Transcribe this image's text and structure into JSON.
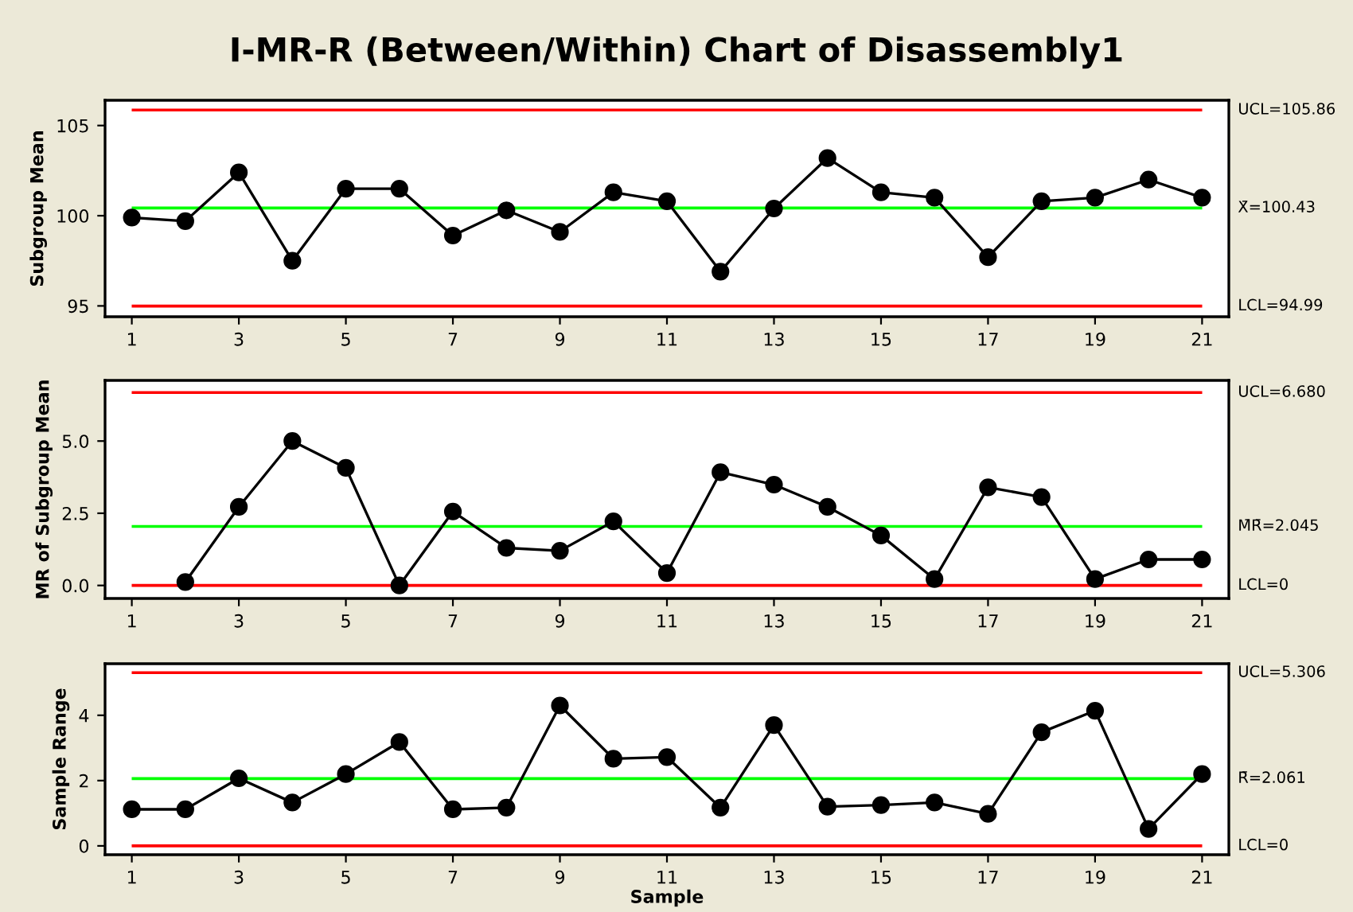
{
  "chart_data": [
    {
      "type": "line",
      "title": "I-MR-R (Between/Within) Chart of Disassembly1",
      "ylabel": "Subgroup Mean",
      "x": [
        1,
        2,
        3,
        4,
        5,
        6,
        7,
        8,
        9,
        10,
        11,
        12,
        13,
        14,
        15,
        16,
        17,
        18,
        19,
        20,
        21
      ],
      "series": [
        {
          "color": "#000000",
          "values": [
            99.9,
            99.7,
            102.4,
            97.5,
            101.5,
            101.5,
            98.9,
            100.3,
            99.1,
            101.3,
            100.8,
            96.9,
            100.4,
            103.2,
            101.3,
            101.0,
            97.7,
            100.8,
            101.0,
            102.0,
            101.0
          ]
        }
      ],
      "marker": "circle",
      "line_style": "solid",
      "xlim": [
        0.5,
        21.5
      ],
      "xticks": [
        1,
        3,
        5,
        7,
        9,
        11,
        13,
        15,
        17,
        19,
        21
      ],
      "ylim": [
        94.4,
        106.4
      ],
      "yticks": [
        95,
        100,
        105
      ],
      "ref_lines": [
        {
          "axis": "y",
          "value": 105.86,
          "label": "UCL=105.86",
          "color": "#ff0000"
        },
        {
          "axis": "y",
          "value": 100.43,
          "label": "X̄=100.43",
          "color": "#00ff00"
        },
        {
          "axis": "y",
          "value": 94.99,
          "label": "LCL=94.99",
          "color": "#ff0000"
        }
      ]
    },
    {
      "type": "line",
      "ylabel": "MR of Subgroup Mean",
      "series": [
        {
          "color": "#000000",
          "x": [
            2,
            3,
            4,
            5,
            6,
            7,
            8,
            9,
            10,
            11,
            12,
            13,
            14,
            15,
            16,
            17,
            18,
            19,
            20,
            21
          ],
          "values": [
            0.12,
            2.72,
            5.0,
            4.07,
            0.0,
            2.56,
            1.3,
            1.2,
            2.22,
            0.43,
            3.92,
            3.49,
            2.72,
            1.73,
            0.22,
            3.4,
            3.06,
            0.22,
            0.9,
            0.9
          ]
        }
      ],
      "marker": "circle",
      "line_style": "solid",
      "xlim": [
        0.5,
        21.5
      ],
      "xticks": [
        1,
        3,
        5,
        7,
        9,
        11,
        13,
        15,
        17,
        19,
        21
      ],
      "ylim": [
        -0.45,
        7.1
      ],
      "yticks": [
        {
          "value": 0,
          "label": "0.0"
        },
        {
          "value": 2.5,
          "label": "2.5"
        },
        {
          "value": 5,
          "label": "5.0"
        }
      ],
      "ref_lines": [
        {
          "axis": "y",
          "value": 6.68,
          "label": "UCL=6.680",
          "color": "#ff0000"
        },
        {
          "axis": "y",
          "value": 2.045,
          "label": "M̄R̄=2.045",
          "color": "#00ff00"
        },
        {
          "axis": "y",
          "value": 0,
          "label": "LCL=0",
          "color": "#ff0000"
        }
      ]
    },
    {
      "type": "line",
      "ylabel": "Sample Range",
      "xlabel": "Sample",
      "x": [
        1,
        2,
        3,
        4,
        5,
        6,
        7,
        8,
        9,
        10,
        11,
        12,
        13,
        14,
        15,
        16,
        17,
        18,
        19,
        20,
        21
      ],
      "series": [
        {
          "color": "#000000",
          "values": [
            1.12,
            1.12,
            2.07,
            1.33,
            2.2,
            3.18,
            1.12,
            1.17,
            4.3,
            2.67,
            2.72,
            1.17,
            3.7,
            1.2,
            1.25,
            1.33,
            0.98,
            3.48,
            4.14,
            0.52,
            2.2
          ]
        }
      ],
      "marker": "circle",
      "line_style": "solid",
      "xlim": [
        0.5,
        21.5
      ],
      "xticks": [
        1,
        3,
        5,
        7,
        9,
        11,
        13,
        15,
        17,
        19,
        21
      ],
      "ylim": [
        -0.27,
        5.58
      ],
      "yticks": [
        0,
        2,
        4
      ],
      "ref_lines": [
        {
          "axis": "y",
          "value": 5.306,
          "label": "UCL=5.306",
          "color": "#ff0000"
        },
        {
          "axis": "y",
          "value": 2.061,
          "label": "R̄=2.061",
          "color": "#00ff00"
        },
        {
          "axis": "y",
          "value": 0,
          "label": "LCL=0",
          "color": "#ff0000"
        }
      ]
    }
  ]
}
